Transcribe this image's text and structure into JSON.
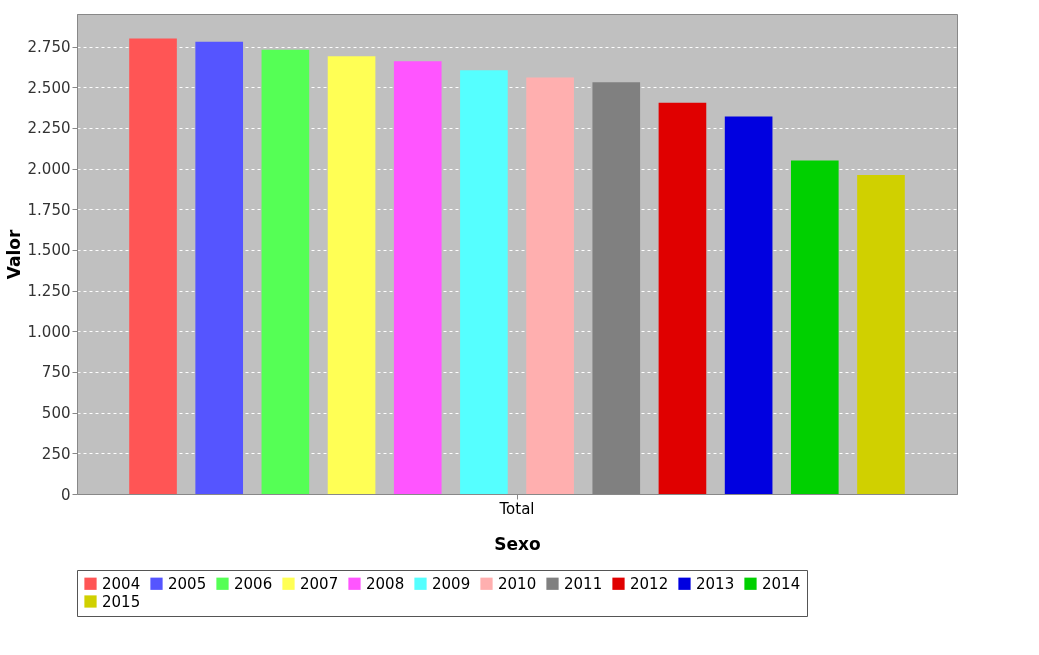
{
  "chart_data": {
    "type": "bar",
    "xlabel": "Sexo",
    "ylabel": "Valor",
    "categories": [
      "Total"
    ],
    "series": [
      {
        "name": "2004",
        "color": "#ff5555",
        "values": [
          2800
        ]
      },
      {
        "name": "2005",
        "color": "#5555ff",
        "values": [
          2780
        ]
      },
      {
        "name": "2006",
        "color": "#55ff55",
        "values": [
          2730
        ]
      },
      {
        "name": "2007",
        "color": "#ffff55",
        "values": [
          2690
        ]
      },
      {
        "name": "2008",
        "color": "#ff55ff",
        "values": [
          2660
        ]
      },
      {
        "name": "2009",
        "color": "#55ffff",
        "values": [
          2605
        ]
      },
      {
        "name": "2010",
        "color": "#ffafaf",
        "values": [
          2560
        ]
      },
      {
        "name": "2011",
        "color": "#808080",
        "values": [
          2530
        ]
      },
      {
        "name": "2012",
        "color": "#e00000",
        "values": [
          2405
        ]
      },
      {
        "name": "2013",
        "color": "#0000e0",
        "values": [
          2320
        ]
      },
      {
        "name": "2014",
        "color": "#00d000",
        "values": [
          2050
        ]
      },
      {
        "name": "2015",
        "color": "#d0d000",
        "values": [
          1960
        ]
      }
    ],
    "ylim": [
      0,
      2950
    ],
    "yticks": [
      0,
      250,
      500,
      750,
      {
        "value": 1000,
        "label": "1.000"
      },
      {
        "value": 1250,
        "label": "1.250"
      },
      {
        "value": 1500,
        "label": "1.500"
      },
      {
        "value": 1750,
        "label": "1.750"
      },
      {
        "value": 2000,
        "label": "2.000"
      },
      {
        "value": 2250,
        "label": "2.250"
      },
      {
        "value": 2500,
        "label": "2.500"
      },
      {
        "value": 2750,
        "label": "2.750"
      }
    ],
    "grid": "y",
    "legend": "bottom"
  }
}
